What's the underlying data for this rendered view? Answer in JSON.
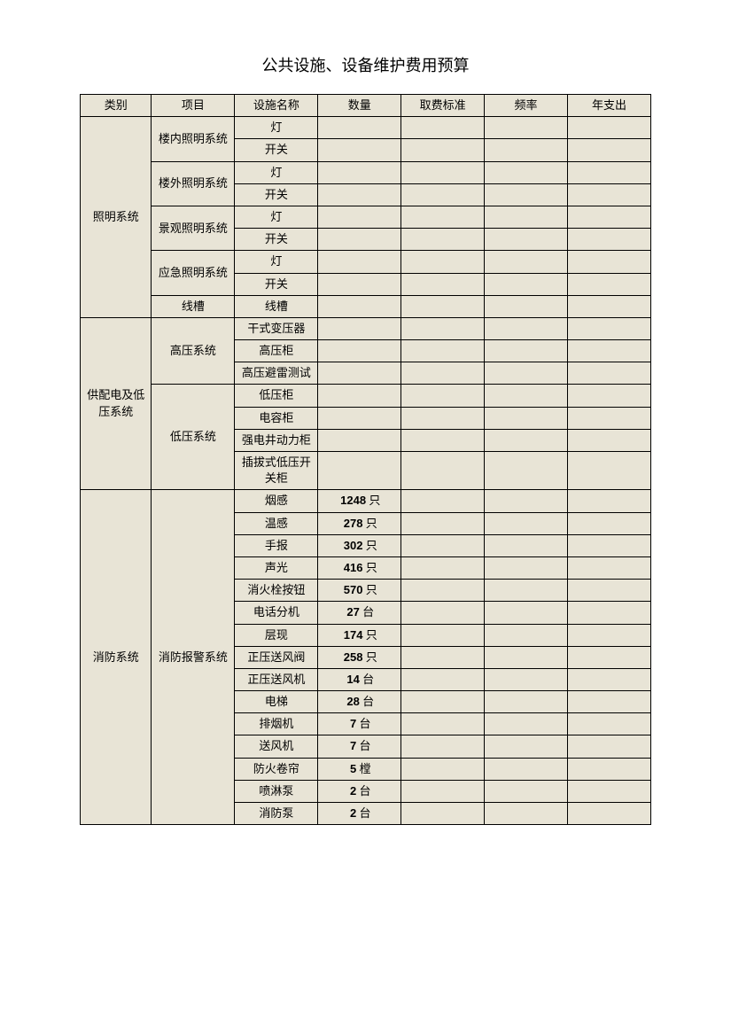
{
  "title": "公共设施、设备维护费用预算",
  "headers": {
    "category": "类别",
    "project": "项目",
    "facility": "设施名称",
    "quantity": "数量",
    "fee": "取费标准",
    "frequency": "频率",
    "annual": "年支出"
  },
  "categories": [
    {
      "name": "照明系统",
      "projects": [
        {
          "name": "楼内照明系统",
          "items": [
            {
              "name": "灯",
              "qty": "",
              "unit": ""
            },
            {
              "name": "开关",
              "qty": "",
              "unit": ""
            }
          ]
        },
        {
          "name": "楼外照明系统",
          "items": [
            {
              "name": "灯",
              "qty": "",
              "unit": ""
            },
            {
              "name": "开关",
              "qty": "",
              "unit": ""
            }
          ]
        },
        {
          "name": "景观照明系统",
          "items": [
            {
              "name": "灯",
              "qty": "",
              "unit": ""
            },
            {
              "name": "开关",
              "qty": "",
              "unit": ""
            }
          ]
        },
        {
          "name": "应急照明系统",
          "items": [
            {
              "name": "灯",
              "qty": "",
              "unit": ""
            },
            {
              "name": "开关",
              "qty": "",
              "unit": ""
            }
          ]
        },
        {
          "name": "线槽",
          "items": [
            {
              "name": "线槽",
              "qty": "",
              "unit": ""
            }
          ]
        }
      ]
    },
    {
      "name": "供配电及低压系统",
      "projects": [
        {
          "name": "高压系统",
          "items": [
            {
              "name": "干式变压器",
              "qty": "",
              "unit": ""
            },
            {
              "name": "高压柜",
              "qty": "",
              "unit": ""
            },
            {
              "name": "高压避雷测试",
              "qty": "",
              "unit": ""
            }
          ]
        },
        {
          "name": "低压系统",
          "items": [
            {
              "name": "低压柜",
              "qty": "",
              "unit": ""
            },
            {
              "name": "电容柜",
              "qty": "",
              "unit": ""
            },
            {
              "name": "强电井动力柜",
              "qty": "",
              "unit": ""
            },
            {
              "name": "插拔式低压开关柜",
              "qty": "",
              "unit": ""
            }
          ]
        }
      ]
    },
    {
      "name": "消防系统",
      "projects": [
        {
          "name": "消防报警系统",
          "items": [
            {
              "name": "烟感",
              "qty": "1248",
              "unit": "只"
            },
            {
              "name": "温感",
              "qty": "278",
              "unit": "只"
            },
            {
              "name": "手报",
              "qty": "302",
              "unit": "只"
            },
            {
              "name": "声光",
              "qty": "416",
              "unit": "只"
            },
            {
              "name": "消火栓按钮",
              "qty": "570",
              "unit": "只"
            },
            {
              "name": "电话分机",
              "qty": "27",
              "unit": "台"
            },
            {
              "name": "层现",
              "qty": "174",
              "unit": "只"
            },
            {
              "name": "正压送风阀",
              "qty": "258",
              "unit": "只"
            },
            {
              "name": "正压送风机",
              "qty": "14",
              "unit": "台"
            },
            {
              "name": "电梯",
              "qty": "28",
              "unit": "台"
            },
            {
              "name": "排烟机",
              "qty": "7",
              "unit": "台"
            },
            {
              "name": "送风机",
              "qty": "7",
              "unit": "台"
            },
            {
              "name": "防火卷帘",
              "qty": "5",
              "unit": "樘"
            },
            {
              "name": "喷淋泵",
              "qty": "2",
              "unit": "台"
            },
            {
              "name": "消防泵",
              "qty": "2",
              "unit": "台"
            }
          ]
        }
      ]
    }
  ]
}
